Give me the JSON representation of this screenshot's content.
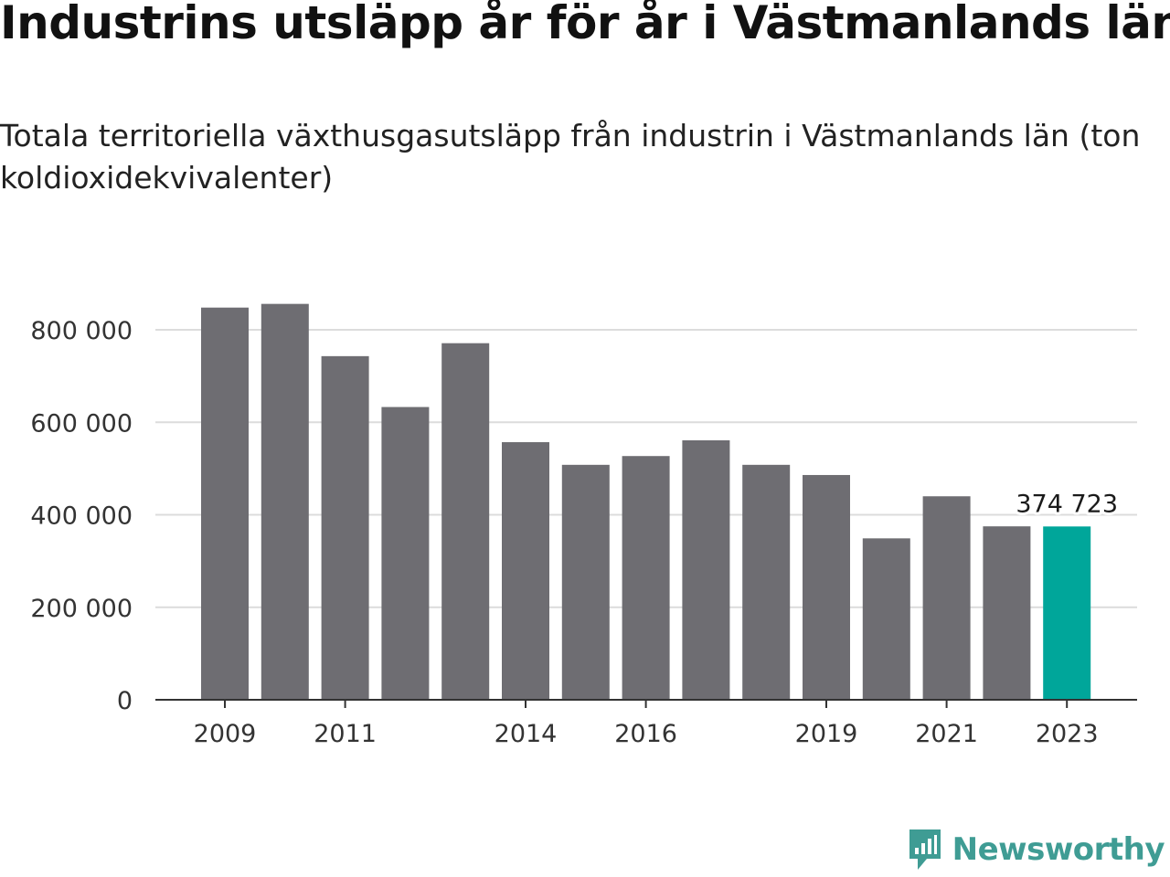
{
  "title": "Industrins utsläpp år för år i Västmanlands län",
  "subtitle": "Totala territoriella växthusgasutsläpp från industrin i Västmanlands län (ton koldioxidekvivalenter)",
  "brand": {
    "name": "Newsworthy",
    "color": "#3f9c94"
  },
  "chart_data": {
    "type": "bar",
    "categories": [
      "2009",
      "2010",
      "2011",
      "2012",
      "2013",
      "2014",
      "2015",
      "2016",
      "2017",
      "2018",
      "2019",
      "2020",
      "2021",
      "2022",
      "2023"
    ],
    "values": [
      848000,
      856000,
      743000,
      633000,
      771000,
      557000,
      508000,
      527000,
      561000,
      508000,
      486000,
      349000,
      440000,
      375000,
      374723
    ],
    "x_tick_labels": [
      "2009",
      "2011",
      "2014",
      "2016",
      "2019",
      "2021",
      "2023"
    ],
    "y_ticks": [
      0,
      200000,
      400000,
      600000,
      800000
    ],
    "y_tick_labels": [
      "0",
      "200 000",
      "400 000",
      "600 000",
      "800 000"
    ],
    "ylim": [
      0,
      900000
    ],
    "grid": true,
    "bar_color": "#6e6d72",
    "highlight_color": "#00a69a",
    "highlight_category": "2023",
    "highlight_label": "374 723"
  }
}
